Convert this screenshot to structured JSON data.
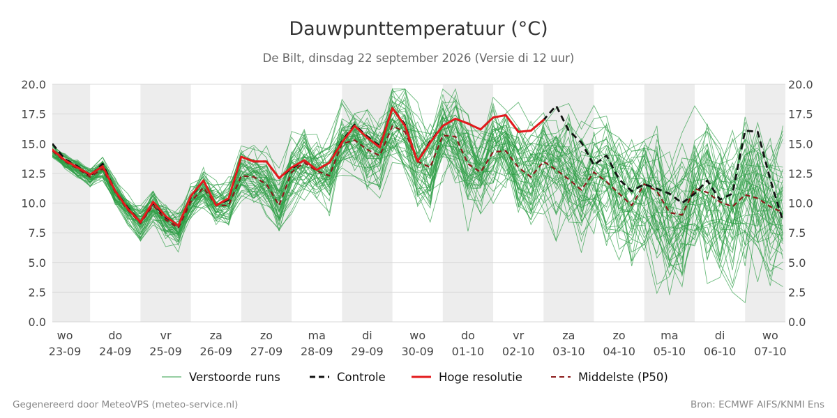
{
  "chart_data": {
    "type": "line",
    "title": "Dauwpunttemperatuur (°C)",
    "subtitle": "De Bilt, dinsdag 22 september 2026 (Versie di 12 uur)",
    "ylim": [
      0,
      20
    ],
    "yticks": [
      "0.0",
      "2.5",
      "5.0",
      "7.5",
      "10.0",
      "12.5",
      "15.0",
      "17.5",
      "20.0"
    ],
    "x_range": [
      -0.25,
      14.3
    ],
    "grid": true,
    "legend_position": "bottom",
    "days": [
      {
        "weekday": "wo",
        "date": "23-09"
      },
      {
        "weekday": "do",
        "date": "24-09"
      },
      {
        "weekday": "vr",
        "date": "25-09"
      },
      {
        "weekday": "za",
        "date": "26-09"
      },
      {
        "weekday": "zo",
        "date": "27-09"
      },
      {
        "weekday": "ma",
        "date": "28-09"
      },
      {
        "weekday": "di",
        "date": "29-09"
      },
      {
        "weekday": "wo",
        "date": "30-09"
      },
      {
        "weekday": "do",
        "date": "01-10"
      },
      {
        "weekday": "vr",
        "date": "02-10"
      },
      {
        "weekday": "za",
        "date": "03-10"
      },
      {
        "weekday": "zo",
        "date": "04-10"
      },
      {
        "weekday": "ma",
        "date": "05-10"
      },
      {
        "weekday": "di",
        "date": "06-10"
      },
      {
        "weekday": "wo",
        "date": "07-10"
      }
    ],
    "shaded_days": [
      0,
      2,
      4,
      6,
      8,
      10,
      12,
      14
    ],
    "series": [
      {
        "name": "Controle",
        "key": "controle",
        "color": "#111111",
        "style": "dashed",
        "x": [
          -0.25,
          0,
          0.25,
          0.5,
          0.75,
          1,
          1.25,
          1.5,
          1.75,
          2,
          2.25,
          2.5,
          2.75,
          3,
          3.25,
          3.5,
          3.75,
          4,
          4.25,
          4.5,
          4.75,
          5,
          5.25,
          5.5,
          5.75,
          6,
          6.25,
          6.5,
          6.75,
          7,
          7.25,
          7.5,
          7.75,
          8,
          8.25,
          8.5,
          8.75,
          9,
          9.25,
          9.5,
          9.75,
          10,
          10.25,
          10.5,
          10.75,
          11,
          11.25,
          11.5,
          11.75,
          12,
          12.25,
          12.5,
          12.75,
          13,
          13.25,
          13.5,
          13.75,
          14,
          14.25
        ],
        "values": [
          15.0,
          13.7,
          13.1,
          12.3,
          13.3,
          11.0,
          9.6,
          8.4,
          10.0,
          8.8,
          8.1,
          10.5,
          11.9,
          9.8,
          10.3,
          13.9,
          13.5,
          13.5,
          12.1,
          12.9,
          13.6,
          12.8,
          13.4,
          15.2,
          16.6,
          15.6,
          14.8,
          18.0,
          16.6,
          13.5,
          15.2,
          16.5,
          17.1,
          16.7,
          16.2,
          17.2,
          17.4,
          16.0,
          16.1,
          17.0,
          18.2,
          16.1,
          15.1,
          13.2,
          14.0,
          12.0,
          11.0,
          11.6,
          11.2,
          10.8,
          10.0,
          10.8,
          11.9,
          10.3,
          10.8,
          16.1,
          16.0,
          12.0,
          8.5
        ]
      },
      {
        "name": "Hoge resolutie",
        "key": "hoge_resolutie",
        "color": "#e31a1c",
        "style": "solid",
        "x": [
          -0.25,
          0,
          0.25,
          0.5,
          0.75,
          1,
          1.25,
          1.5,
          1.75,
          2,
          2.25,
          2.5,
          2.75,
          3,
          3.25,
          3.5,
          3.75,
          4,
          4.25,
          4.5,
          4.75,
          5,
          5.25,
          5.5,
          5.75,
          6,
          6.25,
          6.5,
          6.75,
          7,
          7.25,
          7.5,
          7.75,
          8,
          8.25,
          8.5,
          8.75,
          9,
          9.25,
          9.5
        ],
        "values": [
          14.5,
          13.6,
          13.0,
          12.4,
          13.1,
          11.0,
          9.5,
          8.4,
          10.1,
          8.9,
          8.1,
          10.6,
          11.9,
          9.8,
          10.4,
          13.9,
          13.5,
          13.5,
          12.1,
          13.0,
          13.6,
          12.8,
          13.4,
          15.1,
          16.5,
          15.5,
          14.7,
          18.0,
          16.5,
          13.5,
          15.1,
          16.5,
          17.1,
          16.7,
          16.2,
          17.2,
          17.4,
          16.0,
          16.1,
          17.0
        ]
      },
      {
        "name": "Middelste (P50)",
        "key": "p50",
        "color": "#8b1a1a",
        "style": "dashed",
        "x": [
          -0.25,
          0,
          0.25,
          0.5,
          0.75,
          1,
          1.25,
          1.5,
          1.75,
          2,
          2.25,
          2.5,
          2.75,
          3,
          3.25,
          3.5,
          3.75,
          4,
          4.25,
          4.5,
          4.75,
          5,
          5.25,
          5.5,
          5.75,
          6,
          6.25,
          6.5,
          6.75,
          7,
          7.25,
          7.5,
          7.75,
          8,
          8.25,
          8.5,
          8.75,
          9,
          9.25,
          9.5,
          9.75,
          10,
          10.25,
          10.5,
          10.75,
          11,
          11.25,
          11.5,
          11.75,
          12,
          12.25,
          12.5,
          12.75,
          13,
          13.25,
          13.5,
          13.75,
          14,
          14.25
        ],
        "values": [
          14.4,
          13.5,
          12.9,
          12.2,
          12.9,
          10.9,
          9.4,
          8.3,
          9.8,
          8.6,
          7.9,
          10.1,
          11.3,
          9.8,
          9.8,
          12.3,
          12.2,
          11.6,
          9.8,
          12.6,
          13.4,
          12.7,
          12.3,
          15.0,
          15.3,
          14.5,
          14.0,
          16.5,
          16.0,
          13.5,
          13.0,
          15.7,
          15.6,
          13.3,
          12.6,
          14.3,
          14.4,
          13.0,
          12.2,
          13.5,
          12.8,
          12.0,
          11.1,
          12.6,
          11.8,
          10.8,
          9.8,
          11.6,
          11.0,
          9.2,
          9.0,
          11.2,
          10.9,
          10.1,
          9.7,
          10.7,
          10.4,
          9.7,
          9.2
        ]
      }
    ],
    "ensemble_legend": "Verstoorde runs",
    "ensemble_color": "#2e9e46",
    "ensemble_count": 50
  },
  "legend": {
    "verstoorde": "Verstoorde runs",
    "controle": "Controle",
    "hoge_resolutie": "Hoge resolutie",
    "p50": "Middelste (P50)"
  },
  "footer": {
    "left": "Gegenereerd door MeteoVPS (meteo-service.nl)",
    "right": "Bron: ECMWF AIFS/KNMI Ens"
  }
}
